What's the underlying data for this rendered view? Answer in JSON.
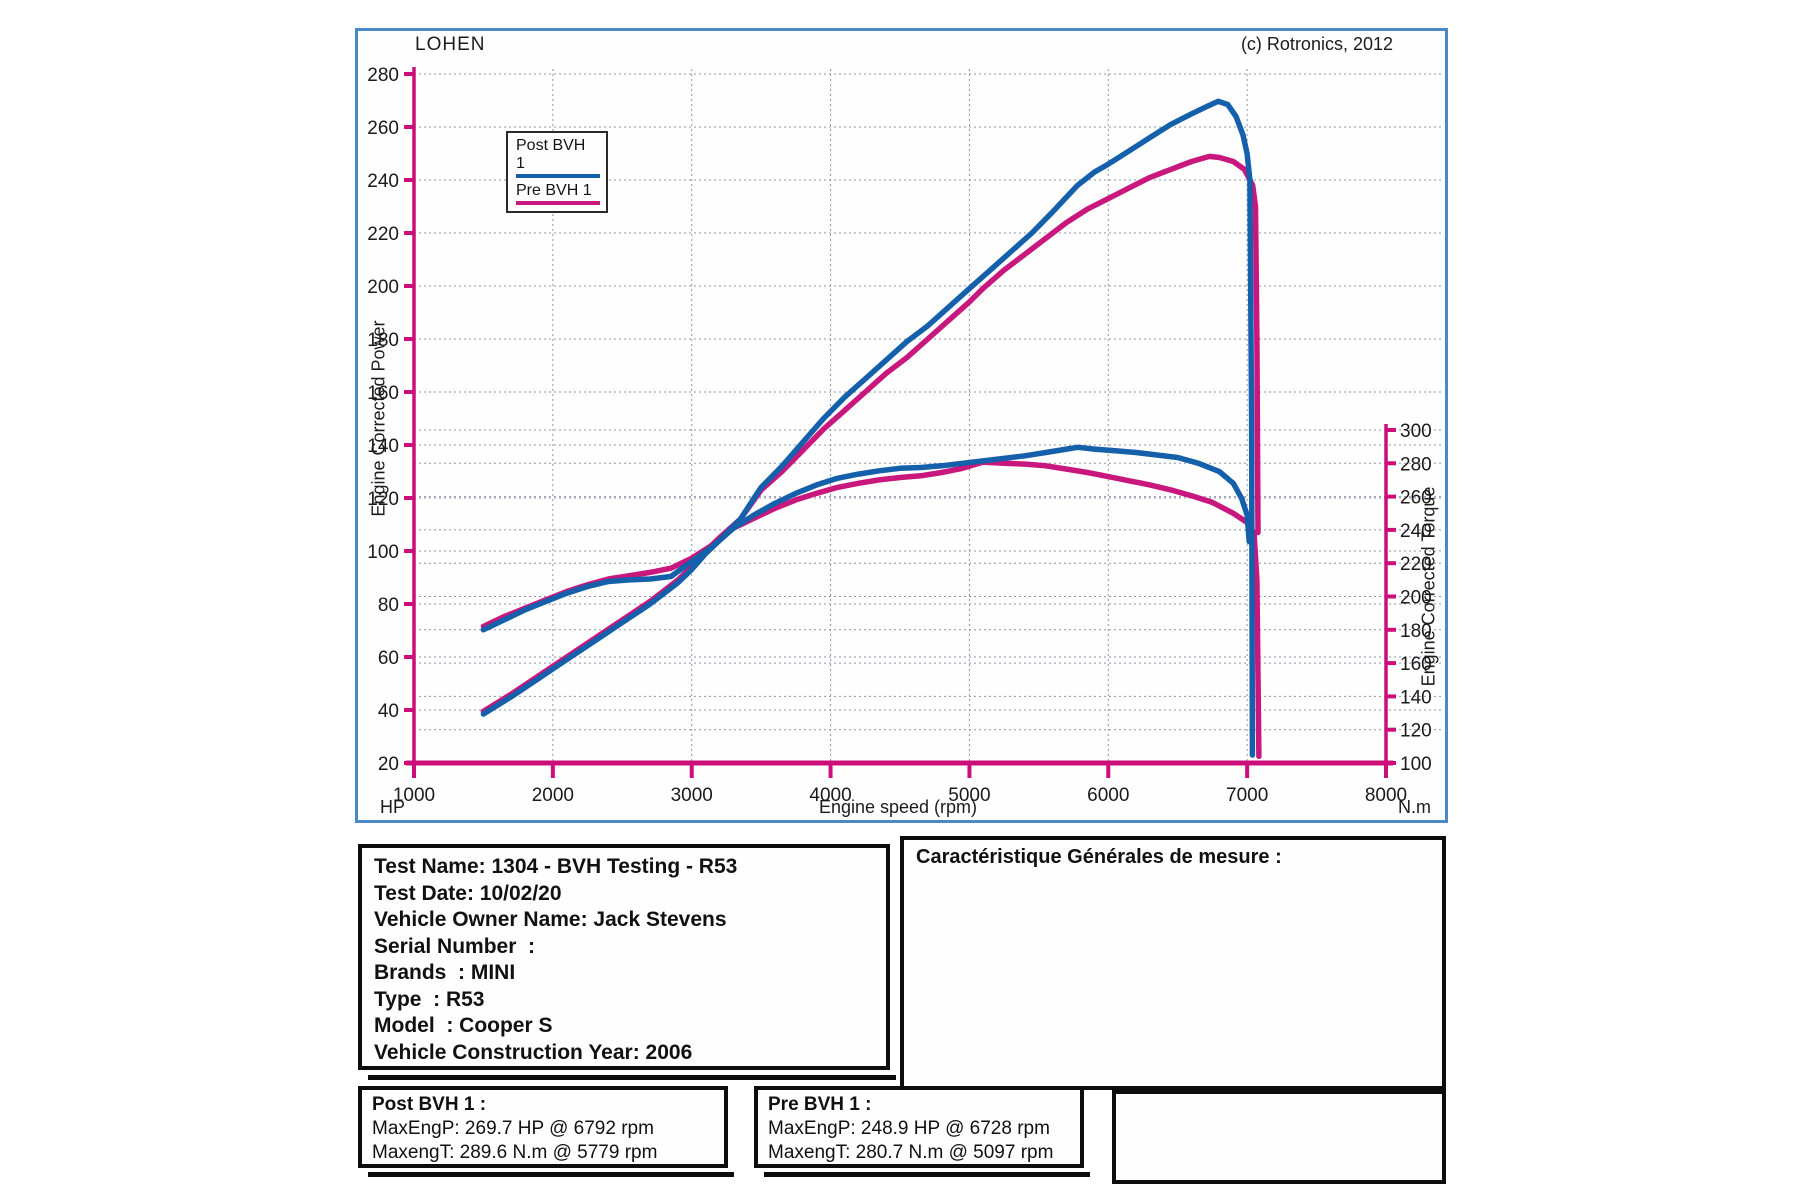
{
  "header": {
    "brand": "LOHEN",
    "copyright": "(c) Rotronics, 2012"
  },
  "chart_data": {
    "type": "line",
    "xlabel": "Engine speed (rpm)",
    "x_range": [
      1000,
      8000
    ],
    "x_ticks": [
      1000,
      2000,
      3000,
      4000,
      5000,
      6000,
      7000,
      8000
    ],
    "left_axis": {
      "label": "Engine Corrected Power",
      "unit": "HP",
      "range": [
        20,
        280
      ],
      "ticks": [
        20,
        40,
        60,
        80,
        100,
        120,
        140,
        160,
        180,
        200,
        220,
        240,
        260,
        280
      ]
    },
    "right_axis": {
      "label": "Engine Corrected Torque",
      "unit": "N.m",
      "range": [
        100,
        300
      ],
      "ticks": [
        100,
        120,
        140,
        160,
        180,
        200,
        220,
        240,
        260,
        280,
        300
      ]
    },
    "grid": true,
    "legend": [
      {
        "label": "Post BVH 1",
        "color": "#1560aa"
      },
      {
        "label": "Pre BVH 1",
        "color": "#c8177d"
      }
    ],
    "series": [
      {
        "name": "pre-bvh1-torque",
        "legend": "Pre BVH 1",
        "axis": "right",
        "color": "#c8177d",
        "points": [
          [
            1500,
            182
          ],
          [
            1650,
            188
          ],
          [
            1800,
            193
          ],
          [
            1950,
            198
          ],
          [
            2100,
            203
          ],
          [
            2250,
            207
          ],
          [
            2400,
            210.5
          ],
          [
            2550,
            212.5
          ],
          [
            2700,
            214.5
          ],
          [
            2850,
            217
          ],
          [
            3000,
            223
          ],
          [
            3150,
            231
          ],
          [
            3300,
            241
          ],
          [
            3450,
            247
          ],
          [
            3600,
            253
          ],
          [
            3750,
            258
          ],
          [
            3900,
            262
          ],
          [
            4050,
            265.5
          ],
          [
            4200,
            268
          ],
          [
            4350,
            270
          ],
          [
            4500,
            271.5
          ],
          [
            4650,
            272.5
          ],
          [
            4800,
            274.5
          ],
          [
            4950,
            277
          ],
          [
            5097,
            280.7
          ],
          [
            5250,
            280
          ],
          [
            5400,
            279.5
          ],
          [
            5550,
            278.5
          ],
          [
            5700,
            276.5
          ],
          [
            5850,
            274.5
          ],
          [
            6000,
            272
          ],
          [
            6150,
            269.5
          ],
          [
            6300,
            267
          ],
          [
            6450,
            264
          ],
          [
            6600,
            260.5
          ],
          [
            6750,
            256.5
          ],
          [
            6900,
            250
          ],
          [
            7000,
            244.5
          ],
          [
            7050,
            238
          ],
          [
            7070,
            210
          ],
          [
            7085,
            104
          ]
        ]
      },
      {
        "name": "pre-bvh1-power",
        "legend": "Pre BVH 1",
        "axis": "left",
        "color": "#c8177d",
        "points": [
          [
            1500,
            39.5
          ],
          [
            1700,
            46
          ],
          [
            1900,
            53
          ],
          [
            2100,
            60
          ],
          [
            2300,
            67
          ],
          [
            2500,
            74
          ],
          [
            2700,
            81
          ],
          [
            2900,
            89
          ],
          [
            3000,
            94
          ],
          [
            3100,
            100
          ],
          [
            3200,
            105
          ],
          [
            3350,
            112
          ],
          [
            3500,
            123
          ],
          [
            3650,
            130
          ],
          [
            3800,
            138
          ],
          [
            3950,
            146
          ],
          [
            4100,
            153
          ],
          [
            4250,
            160
          ],
          [
            4400,
            167
          ],
          [
            4550,
            173
          ],
          [
            4700,
            180
          ],
          [
            4850,
            187
          ],
          [
            5000,
            194
          ],
          [
            5097,
            199
          ],
          [
            5250,
            206
          ],
          [
            5400,
            212
          ],
          [
            5550,
            218
          ],
          [
            5700,
            224
          ],
          [
            5850,
            229
          ],
          [
            6000,
            233
          ],
          [
            6150,
            237
          ],
          [
            6300,
            241
          ],
          [
            6450,
            244
          ],
          [
            6600,
            247
          ],
          [
            6728,
            248.9
          ],
          [
            6800,
            248.5
          ],
          [
            6900,
            247
          ],
          [
            6980,
            244
          ],
          [
            7040,
            238
          ],
          [
            7060,
            230
          ],
          [
            7070,
            180
          ],
          [
            7078,
            107
          ]
        ]
      },
      {
        "name": "post-bvh1-torque",
        "legend": "Post BVH 1",
        "axis": "right",
        "color": "#1560aa",
        "points": [
          [
            1500,
            180
          ],
          [
            1650,
            186
          ],
          [
            1800,
            192
          ],
          [
            1950,
            197
          ],
          [
            2100,
            202
          ],
          [
            2250,
            206
          ],
          [
            2400,
            209
          ],
          [
            2550,
            210
          ],
          [
            2700,
            210.5
          ],
          [
            2850,
            212
          ],
          [
            3000,
            221
          ],
          [
            3150,
            230
          ],
          [
            3300,
            241
          ],
          [
            3450,
            249
          ],
          [
            3600,
            256
          ],
          [
            3750,
            262
          ],
          [
            3900,
            267
          ],
          [
            4050,
            271
          ],
          [
            4200,
            273.5
          ],
          [
            4350,
            275.5
          ],
          [
            4500,
            277
          ],
          [
            4650,
            277.5
          ],
          [
            4800,
            278.5
          ],
          [
            4950,
            280
          ],
          [
            5100,
            281.5
          ],
          [
            5250,
            283
          ],
          [
            5400,
            284.5
          ],
          [
            5550,
            286.5
          ],
          [
            5700,
            288.5
          ],
          [
            5779,
            289.6
          ],
          [
            5900,
            288.5
          ],
          [
            6050,
            287.5
          ],
          [
            6200,
            286.5
          ],
          [
            6350,
            285
          ],
          [
            6500,
            283.5
          ],
          [
            6650,
            280
          ],
          [
            6800,
            275
          ],
          [
            6900,
            268
          ],
          [
            6960,
            259
          ],
          [
            7000,
            249
          ],
          [
            7015,
            233
          ]
        ]
      },
      {
        "name": "post-bvh1-power",
        "legend": "Post BVH 1",
        "axis": "left",
        "color": "#1560aa",
        "points": [
          [
            1500,
            38.5
          ],
          [
            1700,
            45
          ],
          [
            1900,
            52
          ],
          [
            2100,
            59
          ],
          [
            2300,
            66
          ],
          [
            2500,
            73
          ],
          [
            2700,
            80
          ],
          [
            2900,
            88
          ],
          [
            3000,
            93
          ],
          [
            3100,
            99
          ],
          [
            3200,
            104
          ],
          [
            3350,
            112
          ],
          [
            3500,
            124
          ],
          [
            3650,
            132
          ],
          [
            3800,
            141
          ],
          [
            3950,
            150
          ],
          [
            4100,
            158
          ],
          [
            4250,
            165
          ],
          [
            4400,
            172
          ],
          [
            4550,
            179
          ],
          [
            4700,
            185
          ],
          [
            4850,
            192
          ],
          [
            5000,
            199
          ],
          [
            5150,
            206
          ],
          [
            5300,
            213
          ],
          [
            5450,
            220
          ],
          [
            5600,
            228
          ],
          [
            5779,
            238
          ],
          [
            5900,
            243
          ],
          [
            6000,
            246
          ],
          [
            6150,
            251
          ],
          [
            6300,
            256
          ],
          [
            6450,
            261
          ],
          [
            6600,
            265
          ],
          [
            6700,
            267.5
          ],
          [
            6792,
            269.7
          ],
          [
            6860,
            268.5
          ],
          [
            6920,
            264
          ],
          [
            6970,
            257
          ],
          [
            7000,
            250
          ],
          [
            7020,
            240
          ],
          [
            7032,
            150
          ],
          [
            7038,
            23
          ]
        ]
      }
    ],
    "annotations": {
      "post_max_power": "269.7 HP @ 6792 rpm",
      "post_max_torque": "289.6 N.m @ 5779 rpm",
      "pre_max_power": "248.9 HP @ 6728 rpm",
      "pre_max_torque": "280.7 N.m @ 5097 rpm"
    }
  },
  "info_box": {
    "lines": [
      "Test Name: 1304 - BVH Testing - R53",
      "Test Date: 10/02/20",
      "Vehicle Owner Name: Jack Stevens",
      "Serial Number  :",
      "Brands  : MINI",
      "Type  : R53",
      "Model  : Cooper S",
      "Vehicle Construction Year: 2006"
    ]
  },
  "caract_box": {
    "title": "Caractéristique Générales de mesure :"
  },
  "result_boxes": [
    {
      "title": "Post BVH 1 :",
      "max_power": "MaxEngP: 269.7 HP @ 6792 rpm",
      "max_torque": "MaxengT: 289.6 N.m @ 5779 rpm"
    },
    {
      "title": "Pre BVH 1 :",
      "max_power": "MaxEngP: 248.9 HP @ 6728 rpm",
      "max_torque": "MaxengT: 280.7 N.m @ 5097 rpm"
    }
  ],
  "colors": {
    "post_curve": "#1560aa",
    "pre_curve": "#c8177d",
    "axis_magenta": "#cc0e7a",
    "chart_border": "#4a89c6",
    "gridline": "#8d93aa",
    "box_border": "#0d0d0d"
  }
}
